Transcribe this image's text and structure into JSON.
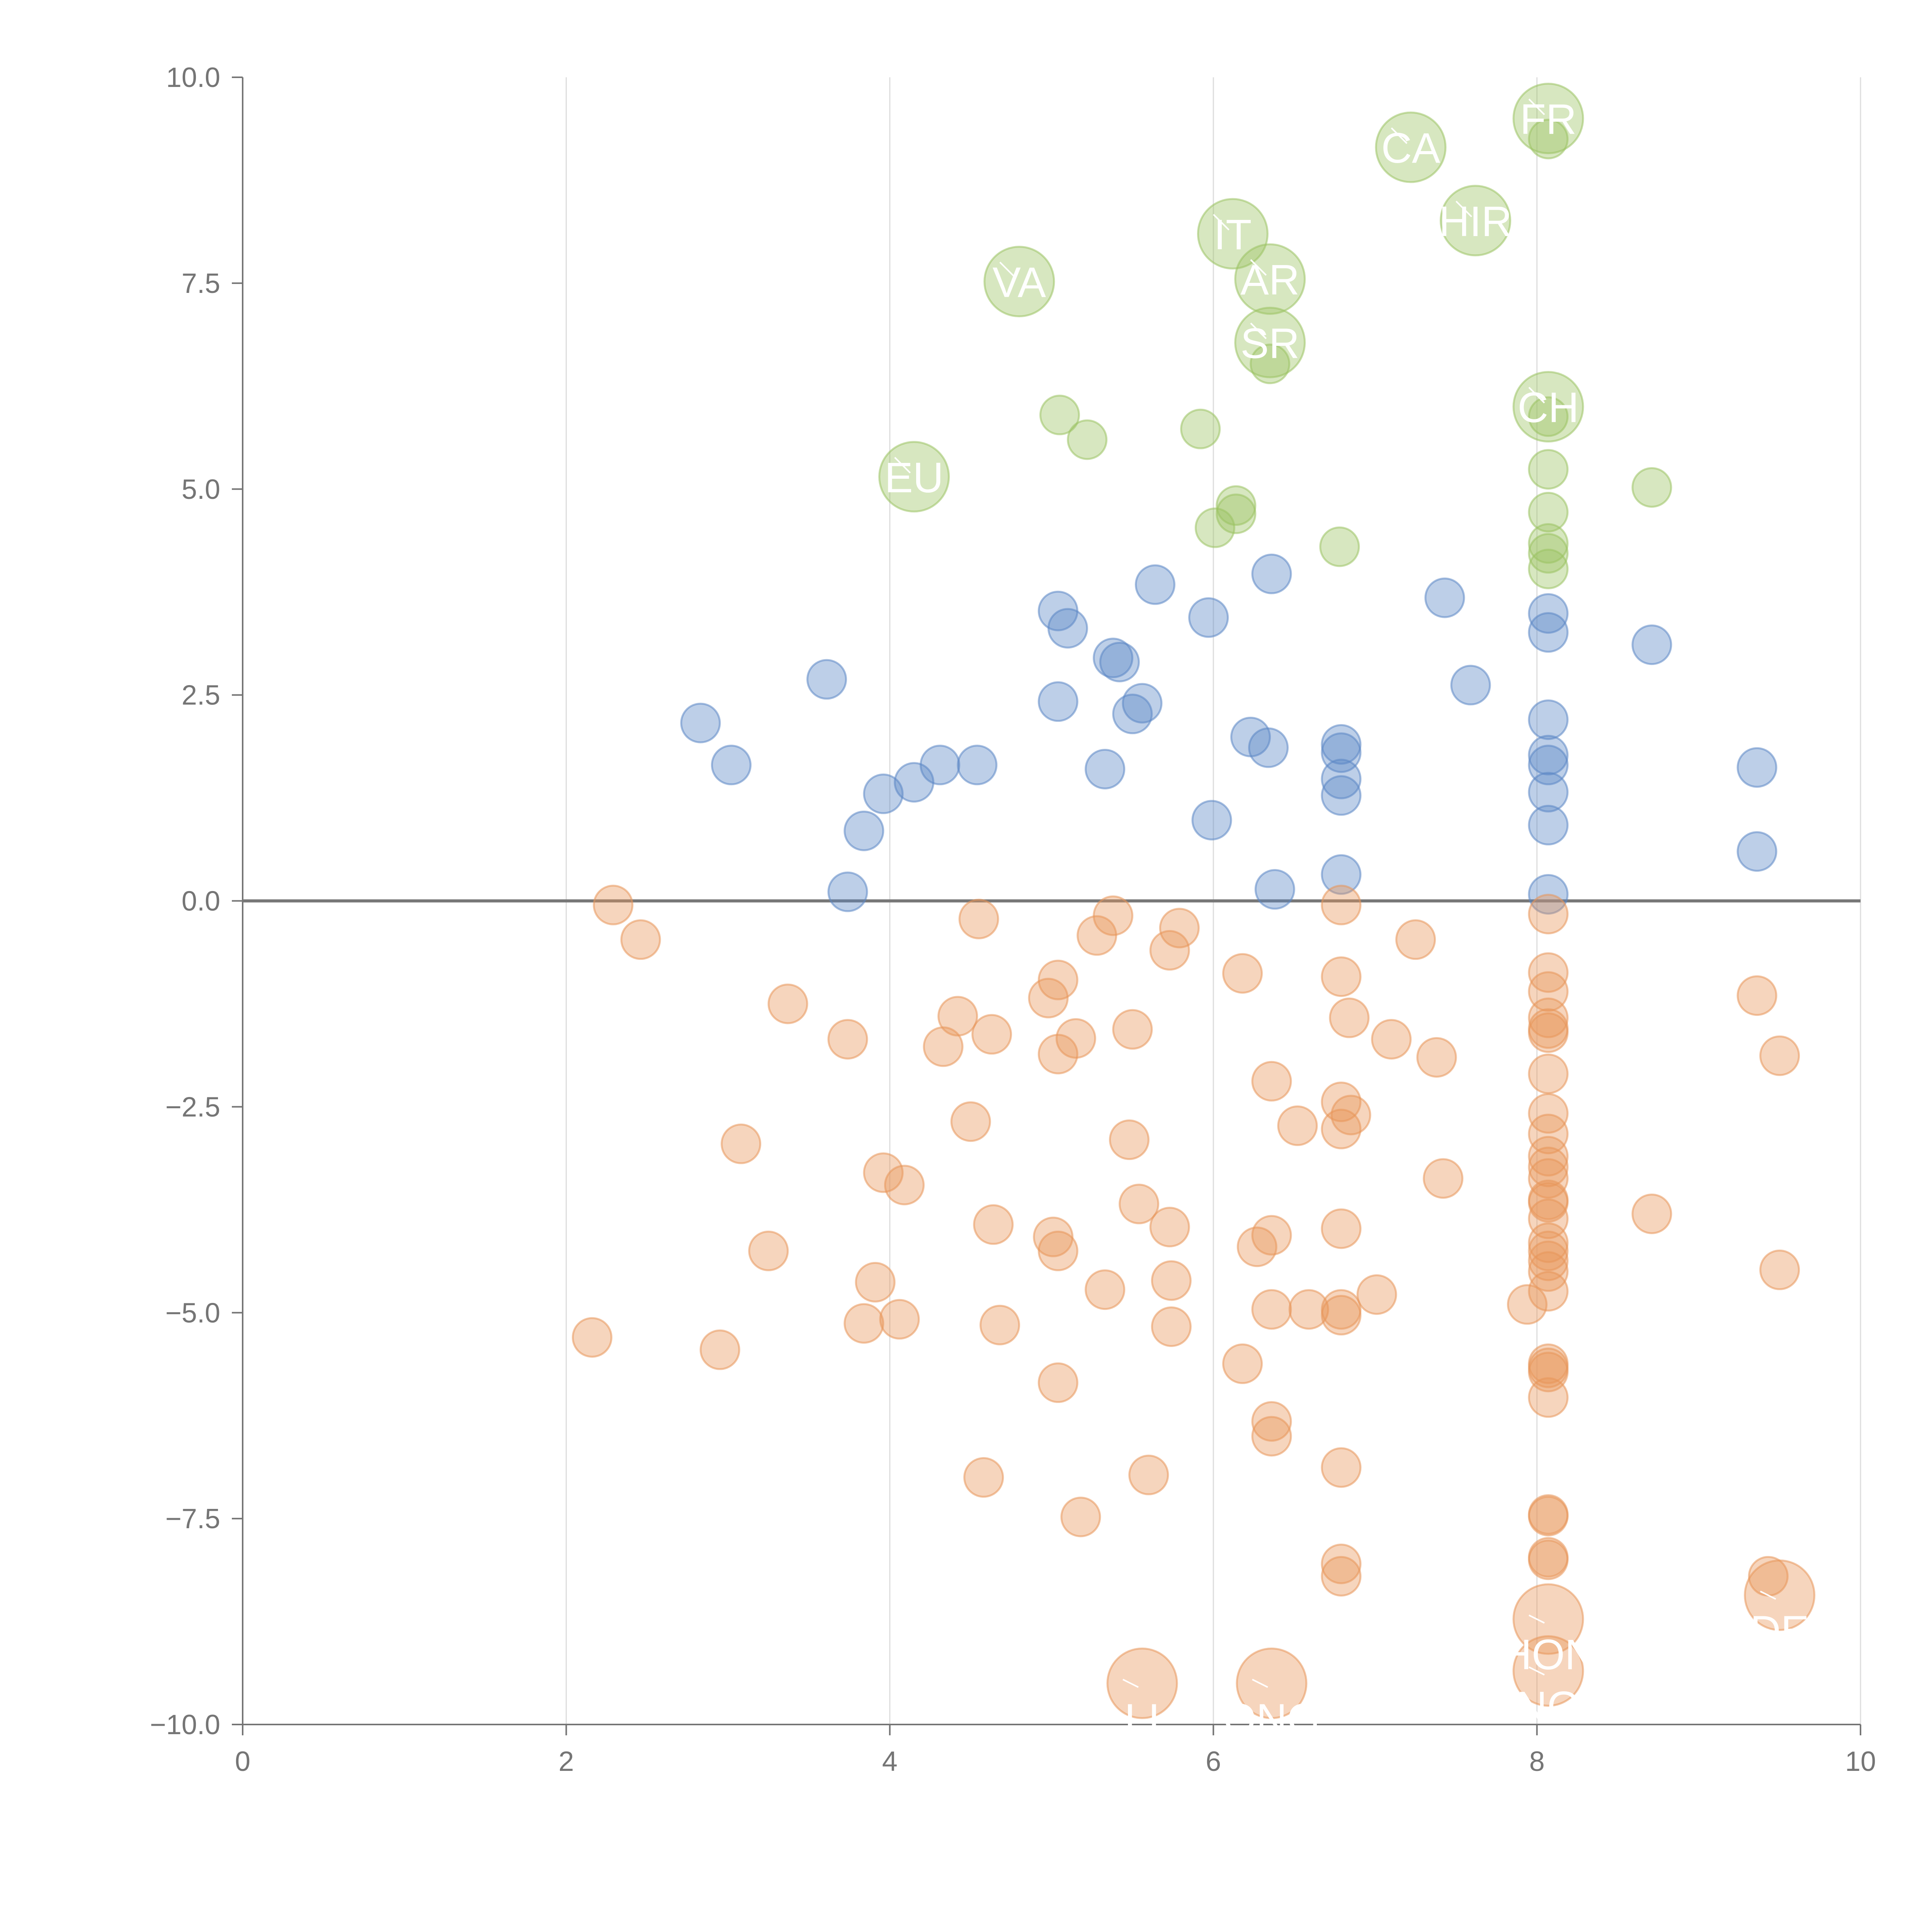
{
  "chart_data": {
    "type": "scatter",
    "title": "",
    "xlabel": "",
    "ylabel": "",
    "xlim": [
      0,
      10
    ],
    "ylim": [
      -10,
      10
    ],
    "x_ticks": [
      0,
      2,
      4,
      6,
      8,
      10
    ],
    "y_ticks": [
      -10,
      -7.5,
      -5,
      -2.5,
      0,
      2.5,
      5,
      7.5,
      10
    ],
    "x_tick_labels": [
      "0",
      "2",
      "4",
      "6",
      "8",
      "10"
    ],
    "y_tick_labels": [
      "−10.0",
      "−7.5",
      "−5.0",
      "−2.5",
      "0.0",
      "2.5",
      "5.0",
      "7.5",
      "10.0"
    ],
    "grid": "vertical",
    "zero_line": true,
    "colors": {
      "green": "#9bc262",
      "blue": "#5b86c5",
      "orange": "#e8955a",
      "axis": "#757575",
      "grid": "#dddddd"
    },
    "series": [
      {
        "name": "green",
        "color": "#9bc262",
        "points": [
          [
            8.07,
            9.25
          ],
          [
            5.05,
            5.9
          ],
          [
            5.22,
            5.6
          ],
          [
            5.92,
            5.73
          ],
          [
            6.14,
            4.8
          ],
          [
            6.14,
            4.7
          ],
          [
            6.01,
            4.53
          ],
          [
            6.78,
            4.3
          ],
          [
            6.35,
            6.52
          ],
          [
            8.07,
            5.88
          ],
          [
            8.07,
            5.24
          ],
          [
            8.07,
            4.72
          ],
          [
            8.07,
            4.34
          ],
          [
            8.07,
            4.22
          ],
          [
            8.07,
            4.03
          ],
          [
            8.71,
            5.02
          ]
        ],
        "labeled": [
          {
            "x": 4.8,
            "y": 7.52,
            "label": "VA"
          },
          {
            "x": 4.15,
            "y": 5.15,
            "label": "EU"
          },
          {
            "x": 6.12,
            "y": 8.1,
            "label": "IT"
          },
          {
            "x": 6.35,
            "y": 7.55,
            "label": "AR"
          },
          {
            "x": 6.35,
            "y": 6.78,
            "label": "SR"
          },
          {
            "x": 7.22,
            "y": 9.15,
            "label": "CA"
          },
          {
            "x": 7.62,
            "y": 8.26,
            "label": "HIR"
          },
          {
            "x": 8.07,
            "y": 9.5,
            "label": "FR"
          },
          {
            "x": 8.07,
            "y": 6.0,
            "label": "CH"
          }
        ]
      },
      {
        "name": "blue",
        "color": "#5b86c5",
        "points": [
          [
            2.83,
            2.16
          ],
          [
            3.02,
            1.65
          ],
          [
            3.61,
            2.69
          ],
          [
            3.74,
            0.11
          ],
          [
            3.84,
            0.85
          ],
          [
            3.96,
            1.3
          ],
          [
            4.15,
            1.44
          ],
          [
            4.31,
            1.65
          ],
          [
            4.54,
            1.65
          ],
          [
            5.04,
            3.52
          ],
          [
            5.1,
            3.31
          ],
          [
            5.04,
            2.42
          ],
          [
            5.33,
            1.6
          ],
          [
            5.38,
            2.95
          ],
          [
            5.42,
            2.9
          ],
          [
            5.5,
            2.27
          ],
          [
            5.56,
            2.4
          ],
          [
            5.64,
            3.84
          ],
          [
            5.97,
            3.44
          ],
          [
            5.99,
            0.98
          ],
          [
            6.23,
            1.99
          ],
          [
            6.34,
            1.86
          ],
          [
            6.36,
            3.97
          ],
          [
            6.38,
            0.14
          ],
          [
            6.79,
            1.9
          ],
          [
            6.79,
            1.8
          ],
          [
            6.79,
            1.48
          ],
          [
            6.79,
            1.28
          ],
          [
            6.79,
            0.32
          ],
          [
            7.43,
            3.68
          ],
          [
            7.59,
            2.62
          ],
          [
            8.07,
            3.49
          ],
          [
            8.07,
            3.26
          ],
          [
            8.07,
            2.2
          ],
          [
            8.07,
            1.77
          ],
          [
            8.07,
            1.65
          ],
          [
            8.07,
            1.32
          ],
          [
            8.07,
            0.92
          ],
          [
            8.07,
            0.08
          ],
          [
            8.71,
            3.11
          ],
          [
            9.36,
            1.62
          ],
          [
            9.36,
            0.6
          ]
        ],
        "labeled": []
      },
      {
        "name": "orange",
        "color": "#e8955a",
        "points": [
          [
            2.29,
            -0.05
          ],
          [
            2.46,
            -0.47
          ],
          [
            2.16,
            -5.3
          ],
          [
            2.95,
            -5.45
          ],
          [
            3.08,
            -2.95
          ],
          [
            3.25,
            -4.25
          ],
          [
            3.37,
            -1.25
          ],
          [
            3.74,
            -1.68
          ],
          [
            3.84,
            -5.13
          ],
          [
            3.91,
            -4.63
          ],
          [
            3.96,
            -3.3
          ],
          [
            4.06,
            -5.08
          ],
          [
            4.09,
            -3.45
          ],
          [
            4.33,
            -1.77
          ],
          [
            4.42,
            -1.4
          ],
          [
            4.5,
            -2.68
          ],
          [
            4.55,
            -0.22
          ],
          [
            4.58,
            -7.0
          ],
          [
            4.63,
            -1.62
          ],
          [
            4.64,
            -3.93
          ],
          [
            4.68,
            -5.15
          ],
          [
            4.98,
            -1.18
          ],
          [
            5.01,
            -4.08
          ],
          [
            5.04,
            -0.96
          ],
          [
            5.04,
            -1.86
          ],
          [
            5.04,
            -4.25
          ],
          [
            5.04,
            -5.85
          ],
          [
            5.15,
            -1.67
          ],
          [
            5.18,
            -7.48
          ],
          [
            5.28,
            -0.42
          ],
          [
            5.33,
            -4.72
          ],
          [
            5.38,
            -0.18
          ],
          [
            5.48,
            -2.9
          ],
          [
            5.5,
            -1.56
          ],
          [
            5.54,
            -3.68
          ],
          [
            5.6,
            -6.97
          ],
          [
            5.73,
            -0.6
          ],
          [
            5.73,
            -3.96
          ],
          [
            5.74,
            -4.61
          ],
          [
            5.74,
            -5.17
          ],
          [
            5.79,
            -0.33
          ],
          [
            6.18,
            -0.88
          ],
          [
            6.18,
            -5.62
          ],
          [
            6.27,
            -4.2
          ],
          [
            6.36,
            -2.19
          ],
          [
            6.36,
            -4.06
          ],
          [
            6.36,
            -4.96
          ],
          [
            6.36,
            -6.32
          ],
          [
            6.36,
            -6.5
          ],
          [
            6.52,
            -2.73
          ],
          [
            6.59,
            -4.96
          ],
          [
            6.79,
            -0.05
          ],
          [
            6.79,
            -0.92
          ],
          [
            6.79,
            -2.44
          ],
          [
            6.79,
            -2.77
          ],
          [
            6.79,
            -3.98
          ],
          [
            6.79,
            -4.96
          ],
          [
            6.79,
            -5.03
          ],
          [
            6.79,
            -6.88
          ],
          [
            6.79,
            -8.05
          ],
          [
            6.79,
            -8.2
          ],
          [
            6.84,
            -1.42
          ],
          [
            6.85,
            -2.6
          ],
          [
            7.01,
            -4.78
          ],
          [
            7.1,
            -1.68
          ],
          [
            7.25,
            -0.47
          ],
          [
            7.38,
            -1.9
          ],
          [
            7.42,
            -3.37
          ],
          [
            7.94,
            -4.9
          ],
          [
            8.07,
            -0.16
          ],
          [
            8.07,
            -0.87
          ],
          [
            8.07,
            -1.1
          ],
          [
            8.07,
            -1.42
          ],
          [
            8.07,
            -1.55
          ],
          [
            8.07,
            -1.6
          ],
          [
            8.07,
            -2.1
          ],
          [
            8.07,
            -2.58
          ],
          [
            8.07,
            -2.83
          ],
          [
            8.07,
            -3.1
          ],
          [
            8.07,
            -3.23
          ],
          [
            8.07,
            -3.37
          ],
          [
            8.07,
            -3.63
          ],
          [
            8.07,
            -3.66
          ],
          [
            8.07,
            -3.86
          ],
          [
            8.07,
            -4.15
          ],
          [
            8.07,
            -4.25
          ],
          [
            8.07,
            -4.37
          ],
          [
            8.07,
            -4.5
          ],
          [
            8.07,
            -4.74
          ],
          [
            8.07,
            -5.62
          ],
          [
            8.07,
            -5.67
          ],
          [
            8.07,
            -5.72
          ],
          [
            8.07,
            -6.03
          ],
          [
            8.07,
            -7.45
          ],
          [
            8.07,
            -7.47
          ],
          [
            8.07,
            -7.97
          ],
          [
            8.07,
            -8.0
          ],
          [
            8.71,
            -3.8
          ],
          [
            9.36,
            -1.15
          ],
          [
            9.5,
            -1.88
          ],
          [
            9.5,
            -4.48
          ],
          [
            9.43,
            -8.2
          ]
        ],
        "labeled": [
          {
            "x": 5.56,
            "y": -9.5,
            "label": "LI"
          },
          {
            "x": 6.36,
            "y": -9.5,
            "label": "ONG"
          },
          {
            "x": 8.07,
            "y": -8.72,
            "label": "HON"
          },
          {
            "x": 8.07,
            "y": -9.35,
            "label": "NG"
          },
          {
            "x": 9.5,
            "y": -8.43,
            "label": "DE"
          }
        ]
      }
    ]
  }
}
